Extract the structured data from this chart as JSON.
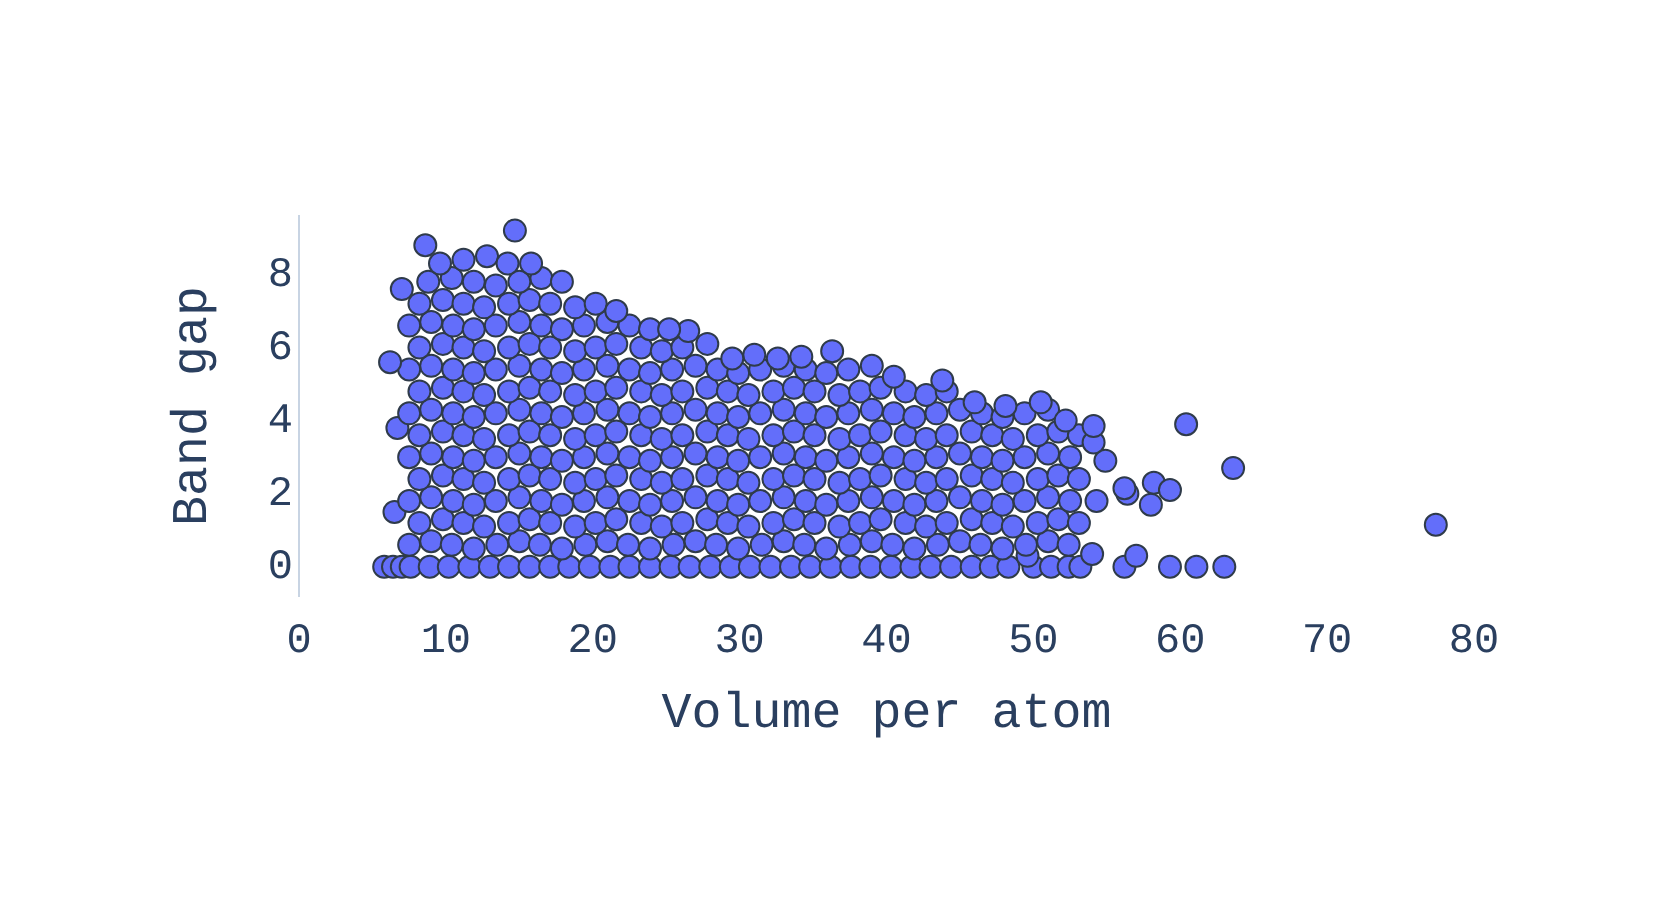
{
  "chart_data": {
    "type": "scatter",
    "xlabel": "Volume per atom",
    "ylabel": "Band gap",
    "xlim": [
      0,
      80
    ],
    "ylim": [
      -0.8,
      9.6
    ],
    "xticks": [
      0,
      10,
      20,
      30,
      40,
      50,
      60,
      70,
      80
    ],
    "yticks": [
      0,
      2,
      4,
      6,
      8
    ],
    "color": "#636efa",
    "marker": "circle",
    "x": [
      5.8,
      6.4,
      7.0,
      7.6,
      8.9,
      10.2,
      11.6,
      13.0,
      14.3,
      15.7,
      17.1,
      18.4,
      19.8,
      21.2,
      22.5,
      23.9,
      25.3,
      26.6,
      28.0,
      29.4,
      30.7,
      32.1,
      33.5,
      34.8,
      36.2,
      37.6,
      38.9,
      40.3,
      41.7,
      43.0,
      44.4,
      45.8,
      47.1,
      48.3,
      50.0,
      51.2,
      52.4,
      53.2,
      56.2,
      59.3,
      61.1,
      63.0,
      54.0,
      57.0,
      49.6,
      7.5,
      9.0,
      10.4,
      11.9,
      13.5,
      15.0,
      16.4,
      17.9,
      19.5,
      21.0,
      22.4,
      23.9,
      25.5,
      27.0,
      28.4,
      29.9,
      31.5,
      33.0,
      34.4,
      35.9,
      37.5,
      39.0,
      40.4,
      41.9,
      43.5,
      45.0,
      46.4,
      47.9,
      49.5,
      51.0,
      52.4,
      8.2,
      9.8,
      11.2,
      12.6,
      14.3,
      15.7,
      17.1,
      18.8,
      20.2,
      21.6,
      23.3,
      24.7,
      26.1,
      27.8,
      29.2,
      30.6,
      32.3,
      33.7,
      35.1,
      36.8,
      38.2,
      39.6,
      41.3,
      42.7,
      44.1,
      45.8,
      47.2,
      48.6,
      50.3,
      51.7,
      53.1,
      6.5,
      7.5,
      9.0,
      10.5,
      11.9,
      13.4,
      15.0,
      16.5,
      17.9,
      19.4,
      21.0,
      22.5,
      23.9,
      25.4,
      27.0,
      28.5,
      29.9,
      31.4,
      33.0,
      34.5,
      35.9,
      37.4,
      39.0,
      40.5,
      41.9,
      43.4,
      45.0,
      46.5,
      47.9,
      49.4,
      51.0,
      52.5,
      54.3,
      56.4,
      58.0,
      8.2,
      9.8,
      11.2,
      12.6,
      14.3,
      15.7,
      17.1,
      18.8,
      20.2,
      21.6,
      23.3,
      24.7,
      26.1,
      27.8,
      29.2,
      30.6,
      32.3,
      33.7,
      35.1,
      36.8,
      38.2,
      39.6,
      41.3,
      42.7,
      44.1,
      45.8,
      47.2,
      48.6,
      50.3,
      51.7,
      53.1,
      56.2,
      58.2,
      59.3,
      7.5,
      9.0,
      10.5,
      11.9,
      13.4,
      15.0,
      16.5,
      17.9,
      19.4,
      21.0,
      22.5,
      23.9,
      25.4,
      27.0,
      28.5,
      29.9,
      31.4,
      33.0,
      34.5,
      35.9,
      37.4,
      39.0,
      40.5,
      41.9,
      43.4,
      45.0,
      46.5,
      47.9,
      49.4,
      51.0,
      52.5,
      54.9,
      63.6,
      8.2,
      9.8,
      11.2,
      12.6,
      14.3,
      15.7,
      17.1,
      18.8,
      20.2,
      21.6,
      23.3,
      24.7,
      26.1,
      27.8,
      29.2,
      30.6,
      32.3,
      33.7,
      35.1,
      36.8,
      38.2,
      39.6,
      41.3,
      42.7,
      44.1,
      45.8,
      47.2,
      48.6,
      50.3,
      51.7,
      53.1,
      54.1,
      6.7,
      7.5,
      9.0,
      10.5,
      11.9,
      13.4,
      15.0,
      16.5,
      17.9,
      19.4,
      21.0,
      22.5,
      23.9,
      25.4,
      27.0,
      28.5,
      29.9,
      31.4,
      33.0,
      34.5,
      35.9,
      37.4,
      39.0,
      40.5,
      41.9,
      43.4,
      45.0,
      46.5,
      47.9,
      49.4,
      51.0,
      52.2,
      54.1,
      60.4,
      50.5,
      48.1,
      8.2,
      9.8,
      11.2,
      12.6,
      14.3,
      15.7,
      17.1,
      18.8,
      20.2,
      21.6,
      23.3,
      24.7,
      26.1,
      27.8,
      29.2,
      30.6,
      32.3,
      33.7,
      35.1,
      36.8,
      38.2,
      39.6,
      41.3,
      42.7,
      44.1,
      43.8,
      46.0,
      7.5,
      9.0,
      10.5,
      11.9,
      13.4,
      15.0,
      16.5,
      17.9,
      19.4,
      21.0,
      22.5,
      23.9,
      25.4,
      27.0,
      28.5,
      29.9,
      31.4,
      33.0,
      34.5,
      35.9,
      37.4,
      39.0,
      6.2,
      40.5,
      8.2,
      9.8,
      11.2,
      12.6,
      14.3,
      15.7,
      17.1,
      18.8,
      20.2,
      21.6,
      23.3,
      24.7,
      26.1,
      27.8,
      36.3,
      29.5,
      31.0,
      32.6,
      34.2,
      7.5,
      9.0,
      10.5,
      11.9,
      13.4,
      15.0,
      16.5,
      17.9,
      19.4,
      21.0,
      22.5,
      23.9,
      26.5,
      25.2,
      8.2,
      9.8,
      11.2,
      12.6,
      14.3,
      15.7,
      17.1,
      18.8,
      20.2,
      21.6,
      8.8,
      10.4,
      11.9,
      13.4,
      15.0,
      16.5,
      17.9,
      7.0,
      9.6,
      11.2,
      12.8,
      14.2,
      15.8,
      8.6,
      14.7,
      77.4
    ],
    "values": [
      0,
      0,
      0,
      0,
      0,
      0,
      0,
      0,
      0,
      0,
      0,
      0,
      0,
      0,
      0,
      0,
      0,
      0,
      0,
      0,
      0,
      0,
      0,
      0,
      0,
      0,
      0,
      0,
      0,
      0,
      0,
      0,
      0,
      0,
      0,
      0,
      0,
      0,
      0,
      0,
      0,
      0,
      0.35,
      0.3,
      0.3,
      0.6,
      0.7,
      0.6,
      0.5,
      0.6,
      0.7,
      0.6,
      0.5,
      0.6,
      0.7,
      0.6,
      0.5,
      0.6,
      0.7,
      0.6,
      0.5,
      0.6,
      0.7,
      0.6,
      0.5,
      0.6,
      0.7,
      0.6,
      0.5,
      0.6,
      0.7,
      0.6,
      0.5,
      0.6,
      0.7,
      0.6,
      1.2,
      1.3,
      1.2,
      1.1,
      1.2,
      1.3,
      1.2,
      1.1,
      1.2,
      1.3,
      1.2,
      1.1,
      1.2,
      1.3,
      1.2,
      1.1,
      1.2,
      1.3,
      1.2,
      1.1,
      1.2,
      1.3,
      1.2,
      1.1,
      1.2,
      1.3,
      1.2,
      1.1,
      1.2,
      1.3,
      1.2,
      1.5,
      1.8,
      1.9,
      1.8,
      1.7,
      1.8,
      1.9,
      1.8,
      1.7,
      1.8,
      1.9,
      1.8,
      1.7,
      1.8,
      1.9,
      1.8,
      1.7,
      1.8,
      1.9,
      1.8,
      1.7,
      1.8,
      1.9,
      1.8,
      1.7,
      1.8,
      1.9,
      1.8,
      1.7,
      1.8,
      1.9,
      1.8,
      1.8,
      2.0,
      1.7,
      2.4,
      2.5,
      2.4,
      2.3,
      2.4,
      2.5,
      2.4,
      2.3,
      2.4,
      2.5,
      2.4,
      2.3,
      2.4,
      2.5,
      2.4,
      2.3,
      2.4,
      2.5,
      2.4,
      2.3,
      2.4,
      2.5,
      2.4,
      2.3,
      2.4,
      2.5,
      2.4,
      2.3,
      2.4,
      2.5,
      2.4,
      2.15,
      2.3,
      2.1,
      3.0,
      3.1,
      3.0,
      2.9,
      3.0,
      3.1,
      3.0,
      2.9,
      3.0,
      3.1,
      3.0,
      2.9,
      3.0,
      3.1,
      3.0,
      2.9,
      3.0,
      3.1,
      3.0,
      2.9,
      3.0,
      3.1,
      3.0,
      2.9,
      3.0,
      3.1,
      3.0,
      2.9,
      3.0,
      3.1,
      3.0,
      2.9,
      2.7,
      3.6,
      3.7,
      3.6,
      3.5,
      3.6,
      3.7,
      3.6,
      3.5,
      3.6,
      3.7,
      3.6,
      3.5,
      3.6,
      3.7,
      3.6,
      3.5,
      3.6,
      3.7,
      3.6,
      3.5,
      3.6,
      3.7,
      3.6,
      3.5,
      3.6,
      3.7,
      3.6,
      3.5,
      3.6,
      3.7,
      3.6,
      3.4,
      3.8,
      4.2,
      4.3,
      4.2,
      4.1,
      4.2,
      4.3,
      4.2,
      4.1,
      4.2,
      4.3,
      4.2,
      4.1,
      4.2,
      4.3,
      4.2,
      4.1,
      4.2,
      4.3,
      4.2,
      4.1,
      4.2,
      4.3,
      4.2,
      4.1,
      4.2,
      4.3,
      4.2,
      4.1,
      4.2,
      4.3,
      4.0,
      3.85,
      3.9,
      4.5,
      4.4,
      4.8,
      4.9,
      4.8,
      4.7,
      4.8,
      4.9,
      4.8,
      4.7,
      4.8,
      4.9,
      4.8,
      4.7,
      4.8,
      4.9,
      4.8,
      4.7,
      4.8,
      4.9,
      4.8,
      4.7,
      4.8,
      4.9,
      4.8,
      4.7,
      4.8,
      5.1,
      4.5,
      5.4,
      5.5,
      5.4,
      5.3,
      5.4,
      5.5,
      5.4,
      5.3,
      5.4,
      5.5,
      5.4,
      5.3,
      5.4,
      5.5,
      5.4,
      5.3,
      5.4,
      5.5,
      5.4,
      5.3,
      5.4,
      5.5,
      5.6,
      5.2,
      6.0,
      6.1,
      6.0,
      5.9,
      6.0,
      6.1,
      6.0,
      5.9,
      6.0,
      6.1,
      6.0,
      5.9,
      6.0,
      6.1,
      5.9,
      5.7,
      5.8,
      5.7,
      5.75,
      6.6,
      6.7,
      6.6,
      6.5,
      6.6,
      6.7,
      6.6,
      6.5,
      6.6,
      6.7,
      6.6,
      6.5,
      6.45,
      6.5,
      7.2,
      7.3,
      7.2,
      7.1,
      7.2,
      7.3,
      7.2,
      7.1,
      7.2,
      7.0,
      7.8,
      7.9,
      7.8,
      7.7,
      7.8,
      7.9,
      7.8,
      7.6,
      8.3,
      8.4,
      8.5,
      8.3,
      8.3,
      8.8,
      9.2,
      1.15
    ]
  }
}
